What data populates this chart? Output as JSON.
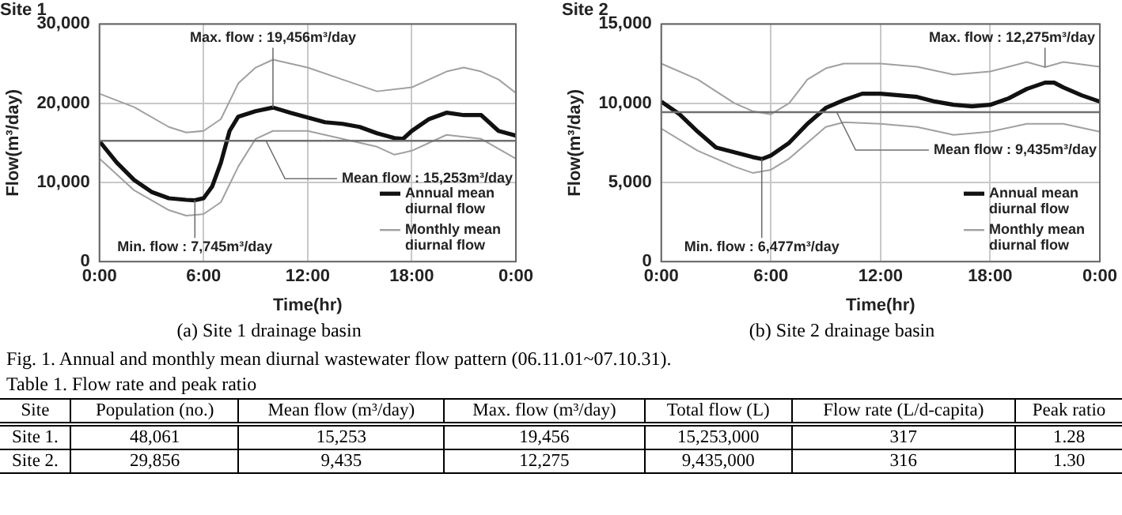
{
  "chart_data": [
    {
      "type": "line",
      "title": "Site 1",
      "xlabel": "Time(hr)",
      "ylabel": "Flow(m³/day)",
      "xlim": [
        0,
        24
      ],
      "xticks": [
        {
          "value": 0,
          "label": "0:00"
        },
        {
          "value": 6,
          "label": "6:00"
        },
        {
          "value": 12,
          "label": "12:00"
        },
        {
          "value": 18,
          "label": "18:00"
        },
        {
          "value": 24,
          "label": "0:00"
        }
      ],
      "ylim": [
        0,
        30000
      ],
      "yticks": [
        {
          "value": 0,
          "label": "0"
        },
        {
          "value": 10000,
          "label": "10,000"
        },
        {
          "value": 20000,
          "label": "20,000"
        },
        {
          "value": 30000,
          "label": "30,000"
        }
      ],
      "grid": true,
      "legend": "bottom right",
      "marker": "none",
      "line_style": "solid",
      "series": [
        {
          "name": "Annual mean diurnal flow",
          "color": "#111111",
          "x": [
            0,
            1,
            2,
            3,
            4,
            5,
            5.5,
            6,
            6.5,
            7,
            7.5,
            8,
            9,
            10,
            11,
            12,
            13,
            14,
            15,
            16,
            17,
            17.5,
            18,
            19,
            20,
            21,
            22,
            23,
            24
          ],
          "values": [
            15200,
            12500,
            10300,
            8800,
            8000,
            7800,
            7745,
            8000,
            9500,
            12500,
            16500,
            18300,
            19000,
            19456,
            18800,
            18200,
            17600,
            17400,
            17000,
            16200,
            15600,
            15500,
            16500,
            18000,
            18800,
            18500,
            18500,
            16500,
            15900
          ]
        },
        {
          "name": "Monthly mean diurnal flow",
          "color": "#a0a0a0",
          "x": [
            0,
            2,
            4,
            5,
            6,
            7,
            8,
            9,
            10,
            12,
            14,
            16,
            18,
            20,
            21,
            22,
            23,
            24
          ],
          "values": [
            21200,
            19500,
            17000,
            16300,
            16500,
            18000,
            22500,
            24500,
            25500,
            24500,
            23000,
            21500,
            22000,
            24000,
            24500,
            24000,
            23000,
            21300
          ]
        },
        {
          "color": "#a0a0a0",
          "x": [
            0,
            2,
            4,
            5,
            6,
            7,
            8,
            9,
            10,
            12,
            14,
            16,
            17,
            18,
            20,
            22,
            24
          ],
          "values": [
            13000,
            9000,
            6500,
            5800,
            6000,
            7500,
            12000,
            15500,
            16500,
            16500,
            15500,
            14500,
            13500,
            14000,
            16000,
            15500,
            13000
          ]
        }
      ],
      "ref_lines": [
        {
          "axis": "y",
          "value": 15253,
          "label": "Mean flow : 15,253m³/day",
          "color": "#707070"
        }
      ],
      "annotations": [
        {
          "text": "Max. flow : 19,456m³/day",
          "x": 10,
          "y": 19456
        },
        {
          "text": "Min. flow : 7,745m³/day",
          "x": 5.5,
          "y": 7745
        },
        "(a) Site 1 drainage basin"
      ]
    },
    {
      "type": "line",
      "title": "Site 2",
      "xlabel": "Time(hr)",
      "ylabel": "Flow(m³/day)",
      "xlim": [
        0,
        24
      ],
      "xticks": [
        {
          "value": 0,
          "label": "0:00"
        },
        {
          "value": 6,
          "label": "6:00"
        },
        {
          "value": 12,
          "label": "12:00"
        },
        {
          "value": 18,
          "label": "18:00"
        },
        {
          "value": 24,
          "label": "0:00"
        }
      ],
      "ylim": [
        0,
        15000
      ],
      "yticks": [
        {
          "value": 0,
          "label": "0"
        },
        {
          "value": 5000,
          "label": "5,000"
        },
        {
          "value": 10000,
          "label": "10,000"
        },
        {
          "value": 15000,
          "label": "15,000"
        }
      ],
      "grid": true,
      "legend": "bottom right",
      "marker": "none",
      "line_style": "solid",
      "series": [
        {
          "name": "Annual mean diurnal flow",
          "color": "#111111",
          "x": [
            0,
            1,
            2,
            3,
            4,
            5,
            5.5,
            6,
            7,
            8,
            9,
            10,
            11,
            12,
            13,
            14,
            15,
            16,
            17,
            18,
            19,
            20,
            21,
            21.5,
            22,
            23,
            24
          ],
          "values": [
            10100,
            9300,
            8200,
            7200,
            6900,
            6600,
            6477,
            6700,
            7500,
            8700,
            9700,
            10200,
            10600,
            10600,
            10500,
            10400,
            10100,
            9900,
            9800,
            9900,
            10300,
            10900,
            11300,
            11300,
            11000,
            10500,
            10100
          ]
        },
        {
          "name": "Monthly mean diurnal flow",
          "color": "#a0a0a0",
          "x": [
            0,
            2,
            4,
            5,
            6,
            7,
            8,
            9,
            10,
            12,
            14,
            16,
            18,
            20,
            21,
            22,
            24
          ],
          "values": [
            12500,
            11500,
            10000,
            9500,
            9300,
            10000,
            11500,
            12200,
            12500,
            12500,
            12300,
            11800,
            12000,
            12600,
            12275,
            12600,
            12300
          ]
        },
        {
          "color": "#a0a0a0",
          "x": [
            0,
            2,
            4,
            5,
            6,
            7,
            8,
            9,
            10,
            12,
            14,
            16,
            18,
            20,
            22,
            24
          ],
          "values": [
            8400,
            7000,
            6000,
            5600,
            5800,
            6500,
            7500,
            8500,
            8800,
            8700,
            8500,
            8000,
            8200,
            8700,
            8700,
            8200
          ]
        }
      ],
      "ref_lines": [
        {
          "axis": "y",
          "value": 9435,
          "label": "Mean flow : 9,435m³/day",
          "color": "#707070"
        }
      ],
      "annotations": [
        {
          "text": "Max. flow : 12,275m³/day",
          "x": 21,
          "y": 12275
        },
        {
          "text": "Min. flow : 6,477m³/day",
          "x": 5.5,
          "y": 6477
        },
        "(b) Site 2 drainage basin"
      ]
    },
    {
      "type": "other",
      "title": "Table 1. Flow rate and peak ratio",
      "annotations": [
        "Fig. 1. Annual and monthly mean diurnal wastewater flow pattern (06.11.01~07.10.31)."
      ],
      "categories": [
        "Site",
        "Population (no.)",
        "Mean flow (m³/day)",
        "Max. flow (m³/day)",
        "Total flow (L)",
        "Flow rate (L/d-capita)",
        "Peak ratio"
      ],
      "cell_labels": [
        [
          "Site 1.",
          "48,061",
          "15,253",
          "19,456",
          "15,253,000",
          "317",
          "1.28"
        ],
        [
          "Site 2.",
          "29,856",
          "9,435",
          "12,275",
          "9,435,000",
          "316",
          "1.30"
        ]
      ]
    }
  ]
}
